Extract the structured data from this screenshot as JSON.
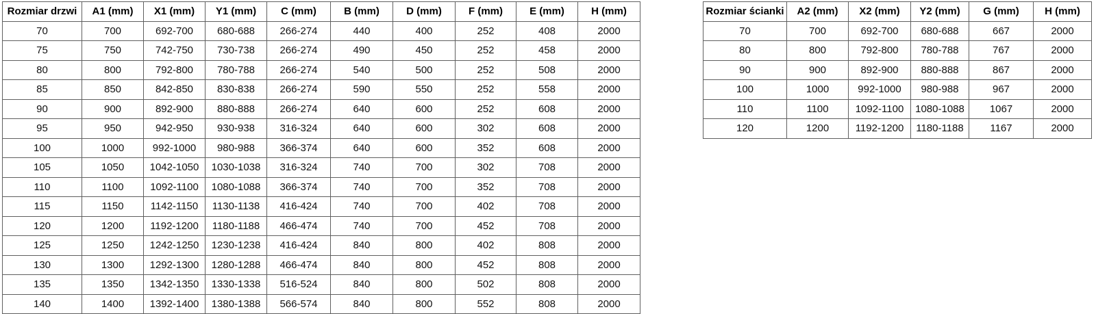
{
  "page": {
    "background_color": "#ffffff",
    "table_border_color": "#5f5f5f",
    "text_color": "#111111"
  },
  "door_table": {
    "title": "Rozmiar drzwi",
    "headers": [
      "Rozmiar drzwi",
      "A1 (mm)",
      "X1 (mm)",
      "Y1 (mm)",
      "C (mm)",
      "B (mm)",
      "D (mm)",
      "F (mm)",
      "E (mm)",
      "H (mm)"
    ],
    "rows": [
      [
        "70",
        "700",
        "692-700",
        "680-688",
        "266-274",
        "440",
        "400",
        "252",
        "408",
        "2000"
      ],
      [
        "75",
        "750",
        "742-750",
        "730-738",
        "266-274",
        "490",
        "450",
        "252",
        "458",
        "2000"
      ],
      [
        "80",
        "800",
        "792-800",
        "780-788",
        "266-274",
        "540",
        "500",
        "252",
        "508",
        "2000"
      ],
      [
        "85",
        "850",
        "842-850",
        "830-838",
        "266-274",
        "590",
        "550",
        "252",
        "558",
        "2000"
      ],
      [
        "90",
        "900",
        "892-900",
        "880-888",
        "266-274",
        "640",
        "600",
        "252",
        "608",
        "2000"
      ],
      [
        "95",
        "950",
        "942-950",
        "930-938",
        "316-324",
        "640",
        "600",
        "302",
        "608",
        "2000"
      ],
      [
        "100",
        "1000",
        "992-1000",
        "980-988",
        "366-374",
        "640",
        "600",
        "352",
        "608",
        "2000"
      ],
      [
        "105",
        "1050",
        "1042-1050",
        "1030-1038",
        "316-324",
        "740",
        "700",
        "302",
        "708",
        "2000"
      ],
      [
        "110",
        "1100",
        "1092-1100",
        "1080-1088",
        "366-374",
        "740",
        "700",
        "352",
        "708",
        "2000"
      ],
      [
        "115",
        "1150",
        "1142-1150",
        "1130-1138",
        "416-424",
        "740",
        "700",
        "402",
        "708",
        "2000"
      ],
      [
        "120",
        "1200",
        "1192-1200",
        "1180-1188",
        "466-474",
        "740",
        "700",
        "452",
        "708",
        "2000"
      ],
      [
        "125",
        "1250",
        "1242-1250",
        "1230-1238",
        "416-424",
        "840",
        "800",
        "402",
        "808",
        "2000"
      ],
      [
        "130",
        "1300",
        "1292-1300",
        "1280-1288",
        "466-474",
        "840",
        "800",
        "452",
        "808",
        "2000"
      ],
      [
        "135",
        "1350",
        "1342-1350",
        "1330-1338",
        "516-524",
        "840",
        "800",
        "502",
        "808",
        "2000"
      ],
      [
        "140",
        "1400",
        "1392-1400",
        "1380-1388",
        "566-574",
        "840",
        "800",
        "552",
        "808",
        "2000"
      ]
    ]
  },
  "wall_table": {
    "title": "Rozmiar ścianki",
    "headers": [
      "Rozmiar ścianki",
      "A2 (mm)",
      "X2 (mm)",
      "Y2 (mm)",
      "G (mm)",
      "H (mm)"
    ],
    "rows": [
      [
        "70",
        "700",
        "692-700",
        "680-688",
        "667",
        "2000"
      ],
      [
        "80",
        "800",
        "792-800",
        "780-788",
        "767",
        "2000"
      ],
      [
        "90",
        "900",
        "892-900",
        "880-888",
        "867",
        "2000"
      ],
      [
        "100",
        "1000",
        "992-1000",
        "980-988",
        "967",
        "2000"
      ],
      [
        "110",
        "1100",
        "1092-1100",
        "1080-1088",
        "1067",
        "2000"
      ],
      [
        "120",
        "1200",
        "1192-1200",
        "1180-1188",
        "1167",
        "2000"
      ]
    ]
  }
}
